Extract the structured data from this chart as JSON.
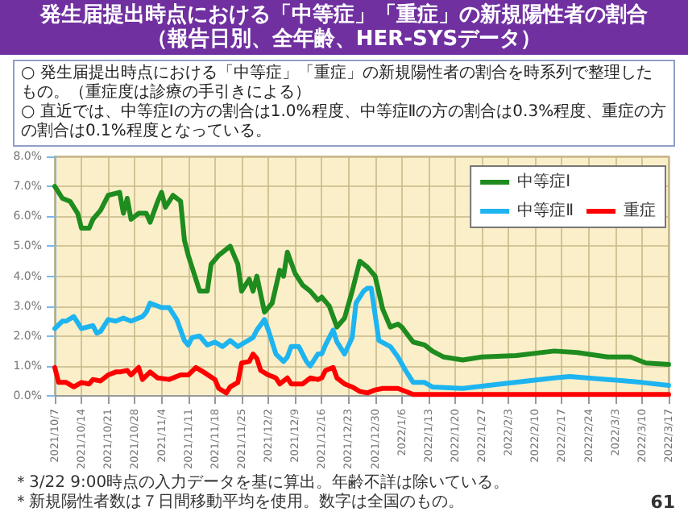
{
  "chart_data": {
    "type": "line",
    "title": "発生届提出時点における「中等症」「重症」の新規陽性者の割合",
    "subtitle": "（報告日別、全年齢、HER-SYSデータ）",
    "annotations": [
      "○ 発生届提出時点における「中等症」「重症」の新規陽性者の割合を時系列で整理したもの。（重症度は診療の手引きによる）",
      "○ 直近では、中等症Ⅰの方の割合は1.0%程度、中等症Ⅱの方の割合は0.3%程度、重症の方の割合は0.1%程度となっている。",
      "＊3/22 9:00時点の入力データを基に算出。年齢不詳は除いている。",
      "＊新規陽性者数は７日間移動平均を使用。数字は全国のもの。",
      "61"
    ],
    "xlim": [
      "2021-10-07",
      "2022-03-17"
    ],
    "xticks": [
      {
        "value": "2021-10-07",
        "label": "2021/10/7"
      },
      {
        "value": "2021-10-14",
        "label": "2021/10/14"
      },
      {
        "value": "2021-10-21",
        "label": "2021/10/21"
      },
      {
        "value": "2021-10-28",
        "label": "2021/10/28"
      },
      {
        "value": "2021-11-04",
        "label": "2021/11/4"
      },
      {
        "value": "2021-11-11",
        "label": "2021/11/11"
      },
      {
        "value": "2021-11-18",
        "label": "2021/11/18"
      },
      {
        "value": "2021-11-25",
        "label": "2021/11/25"
      },
      {
        "value": "2021-12-02",
        "label": "2021/12/2"
      },
      {
        "value": "2021-12-09",
        "label": "2021/12/9"
      },
      {
        "value": "2021-12-16",
        "label": "2021/12/16"
      },
      {
        "value": "2021-12-23",
        "label": "2021/12/23"
      },
      {
        "value": "2021-12-30",
        "label": "2021/12/30"
      },
      {
        "value": "2022-01-06",
        "label": "2022/1/6"
      },
      {
        "value": "2022-01-13",
        "label": "2022/1/13"
      },
      {
        "value": "2022-01-20",
        "label": "2022/1/20"
      },
      {
        "value": "2022-01-27",
        "label": "2022/1/27"
      },
      {
        "value": "2022-02-03",
        "label": "2022/2/3"
      },
      {
        "value": "2022-02-10",
        "label": "2022/2/10"
      },
      {
        "value": "2022-02-17",
        "label": "2022/2/17"
      },
      {
        "value": "2022-02-24",
        "label": "2022/2/24"
      },
      {
        "value": "2022-03-03",
        "label": "2022/3/3"
      },
      {
        "value": "2022-03-10",
        "label": "2022/3/10"
      },
      {
        "value": "2022-03-17",
        "label": "2022/3/17"
      }
    ],
    "ylim": [
      0,
      8
    ],
    "yticks": [
      {
        "value": 0,
        "label": "0.0%"
      },
      {
        "value": 1,
        "label": "1.0%"
      },
      {
        "value": 2,
        "label": "2.0%"
      },
      {
        "value": 3,
        "label": "3.0%"
      },
      {
        "value": 4,
        "label": "4.0%"
      },
      {
        "value": 5,
        "label": "5.0%"
      },
      {
        "value": 6,
        "label": "6.0%"
      },
      {
        "value": 7,
        "label": "7.0%"
      },
      {
        "value": 8,
        "label": "8.0%"
      }
    ],
    "grid": true,
    "legend": "top right",
    "line_style": "solid",
    "series": [
      {
        "name": "中等症Ⅰ",
        "color": "#1e8c1e",
        "x": [
          "2021-10-07",
          "2021-10-09",
          "2021-10-11",
          "2021-10-13",
          "2021-10-14",
          "2021-10-16",
          "2021-10-17",
          "2021-10-19",
          "2021-10-21",
          "2021-10-24",
          "2021-10-25",
          "2021-10-26",
          "2021-10-27",
          "2021-10-29",
          "2021-10-31",
          "2021-11-01",
          "2021-11-03",
          "2021-11-04",
          "2021-11-05",
          "2021-11-07",
          "2021-11-09",
          "2021-11-10",
          "2021-11-11",
          "2021-11-14",
          "2021-11-16",
          "2021-11-17",
          "2021-11-19",
          "2021-11-22",
          "2021-11-24",
          "2021-11-25",
          "2021-11-27",
          "2021-11-28",
          "2021-11-29",
          "2021-12-01",
          "2021-12-03",
          "2021-12-05",
          "2021-12-06",
          "2021-12-07",
          "2021-12-09",
          "2021-12-11",
          "2021-12-13",
          "2021-12-15",
          "2021-12-16",
          "2021-12-18",
          "2021-12-20",
          "2021-12-22",
          "2021-12-24",
          "2021-12-26",
          "2021-12-28",
          "2021-12-30",
          "2022-01-01",
          "2022-01-03",
          "2022-01-05",
          "2022-01-06",
          "2022-01-09",
          "2022-01-12",
          "2022-01-14",
          "2022-01-17",
          "2022-01-22",
          "2022-01-27",
          "2022-02-05",
          "2022-02-15",
          "2022-02-21",
          "2022-03-01",
          "2022-03-07",
          "2022-03-11",
          "2022-03-17"
        ],
        "values": [
          7.0,
          6.6,
          6.5,
          6.1,
          5.6,
          5.6,
          5.9,
          6.2,
          6.7,
          6.8,
          6.1,
          6.6,
          5.9,
          6.1,
          6.1,
          5.8,
          6.5,
          6.8,
          6.3,
          6.7,
          6.5,
          5.2,
          4.7,
          3.5,
          3.5,
          4.4,
          4.7,
          5.0,
          4.4,
          3.5,
          3.9,
          3.5,
          4.0,
          2.8,
          3.1,
          4.2,
          4.0,
          4.8,
          4.1,
          3.7,
          3.5,
          3.2,
          3.3,
          3.0,
          2.3,
          2.6,
          3.5,
          4.5,
          4.3,
          4.0,
          2.9,
          2.3,
          2.4,
          2.3,
          1.8,
          1.7,
          1.5,
          1.3,
          1.2,
          1.3,
          1.35,
          1.5,
          1.45,
          1.3,
          1.3,
          1.1,
          1.05
        ]
      },
      {
        "name": "中等症Ⅱ",
        "color": "#1eb4f0",
        "x": [
          "2021-10-07",
          "2021-10-09",
          "2021-10-10",
          "2021-10-12",
          "2021-10-14",
          "2021-10-17",
          "2021-10-18",
          "2021-10-19",
          "2021-10-21",
          "2021-10-23",
          "2021-10-25",
          "2021-10-27",
          "2021-10-30",
          "2021-10-31",
          "2021-11-01",
          "2021-11-04",
          "2021-11-06",
          "2021-11-08",
          "2021-11-10",
          "2021-11-11",
          "2021-11-12",
          "2021-11-14",
          "2021-11-16",
          "2021-11-18",
          "2021-11-20",
          "2021-11-22",
          "2021-11-24",
          "2021-11-26",
          "2021-11-28",
          "2021-11-29",
          "2021-12-01",
          "2021-12-02",
          "2021-12-04",
          "2021-12-06",
          "2021-12-07",
          "2021-12-08",
          "2021-12-10",
          "2021-12-12",
          "2021-12-13",
          "2021-12-15",
          "2021-12-16",
          "2021-12-17",
          "2021-12-19",
          "2021-12-20",
          "2021-12-22",
          "2021-12-24",
          "2021-12-25",
          "2021-12-27",
          "2021-12-28",
          "2021-12-29",
          "2021-12-31",
          "2022-01-03",
          "2022-01-05",
          "2022-01-07",
          "2022-01-09",
          "2022-01-12",
          "2022-01-14",
          "2022-01-22",
          "2022-02-01",
          "2022-02-15",
          "2022-02-19",
          "2022-03-01",
          "2022-03-10",
          "2022-03-17"
        ],
        "values": [
          2.25,
          2.5,
          2.5,
          2.65,
          2.25,
          2.35,
          2.1,
          2.15,
          2.55,
          2.5,
          2.6,
          2.5,
          2.65,
          2.8,
          3.1,
          2.95,
          2.95,
          2.55,
          1.85,
          1.7,
          1.95,
          2.0,
          1.7,
          1.8,
          1.65,
          1.85,
          1.65,
          1.8,
          1.95,
          2.2,
          2.55,
          2.2,
          1.4,
          1.15,
          1.3,
          1.65,
          1.65,
          1.15,
          1.0,
          1.4,
          1.4,
          1.7,
          2.2,
          1.8,
          1.4,
          1.95,
          3.1,
          3.5,
          3.6,
          3.6,
          1.85,
          1.65,
          1.3,
          0.85,
          0.45,
          0.45,
          0.3,
          0.25,
          0.4,
          0.6,
          0.65,
          0.55,
          0.45,
          0.35
        ]
      },
      {
        "name": "重症",
        "color": "#ff0000",
        "x": [
          "2021-10-07",
          "2021-10-08",
          "2021-10-10",
          "2021-10-12",
          "2021-10-14",
          "2021-10-16",
          "2021-10-17",
          "2021-10-19",
          "2021-10-21",
          "2021-10-23",
          "2021-10-24",
          "2021-10-26",
          "2021-10-27",
          "2021-10-29",
          "2021-10-30",
          "2021-11-01",
          "2021-11-03",
          "2021-11-06",
          "2021-11-09",
          "2021-11-11",
          "2021-11-13",
          "2021-11-15",
          "2021-11-18",
          "2021-11-19",
          "2021-11-21",
          "2021-11-22",
          "2021-11-24",
          "2021-11-25",
          "2021-11-27",
          "2021-11-28",
          "2021-11-29",
          "2021-11-30",
          "2021-12-02",
          "2021-12-04",
          "2021-12-05",
          "2021-12-07",
          "2021-12-08",
          "2021-12-11",
          "2021-12-13",
          "2021-12-15",
          "2021-12-16",
          "2021-12-17",
          "2021-12-19",
          "2021-12-20",
          "2021-12-22",
          "2021-12-24",
          "2021-12-26",
          "2021-12-28",
          "2021-12-30",
          "2022-01-01",
          "2022-01-05",
          "2022-01-07",
          "2022-01-09",
          "2022-03-17"
        ],
        "values": [
          0.95,
          0.45,
          0.45,
          0.3,
          0.45,
          0.4,
          0.55,
          0.5,
          0.7,
          0.8,
          0.8,
          0.85,
          0.7,
          0.95,
          0.55,
          0.8,
          0.6,
          0.55,
          0.7,
          0.7,
          0.95,
          0.8,
          0.55,
          0.25,
          0.1,
          0.3,
          0.45,
          1.1,
          1.15,
          1.4,
          1.25,
          0.85,
          0.7,
          0.6,
          0.4,
          0.6,
          0.4,
          0.4,
          0.6,
          0.55,
          0.6,
          0.85,
          0.95,
          0.6,
          0.4,
          0.3,
          0.15,
          0.1,
          0.2,
          0.25,
          0.25,
          0.15,
          0.05,
          0.05
        ]
      }
    ]
  }
}
